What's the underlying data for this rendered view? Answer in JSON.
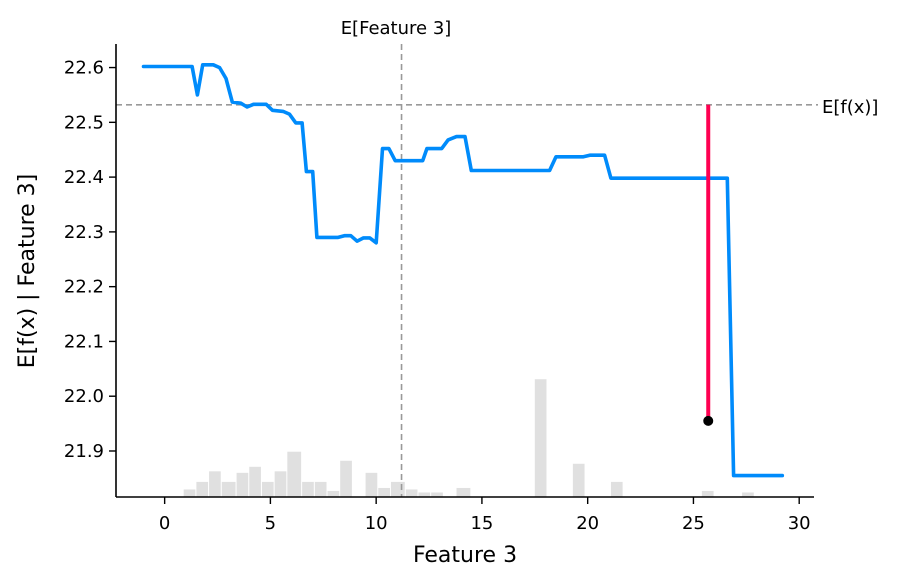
{
  "chart_data": {
    "type": "line",
    "xlabel": "Feature 3",
    "ylabel": "E[f(x) | Feature 3]",
    "xlim": [
      -2.3,
      30.7
    ],
    "ylim": [
      21.816,
      22.643
    ],
    "x_ticks": [
      0,
      5,
      10,
      15,
      20,
      25,
      30
    ],
    "y_ticks": [
      21.9,
      22.0,
      22.1,
      22.2,
      22.3,
      22.4,
      22.5,
      22.6
    ],
    "x_tick_labels": [
      "0",
      "5",
      "10",
      "15",
      "20",
      "25",
      "30"
    ],
    "y_tick_labels": [
      "21.9",
      "22.0",
      "22.1",
      "22.2",
      "22.3",
      "22.4",
      "22.5",
      "22.6"
    ],
    "reference_lines": {
      "expected_feature": {
        "label": "E[Feature 3]",
        "x": 11.2
      },
      "expected_output": {
        "label": "E[f(x)]",
        "y": 22.532
      }
    },
    "series": [
      {
        "color": "#008bfb",
        "x": [
          -1.0,
          1.3,
          1.55,
          1.8,
          2.3,
          2.6,
          2.9,
          3.2,
          3.6,
          3.9,
          4.2,
          4.8,
          5.1,
          5.6,
          5.9,
          6.2,
          6.5,
          6.7,
          7.0,
          7.2,
          7.4,
          8.2,
          8.5,
          8.8,
          9.1,
          9.4,
          9.7,
          10.0,
          10.3,
          10.6,
          10.9,
          11.2,
          12.2,
          12.4,
          13.1,
          13.4,
          13.8,
          14.2,
          14.5,
          14.8,
          18.2,
          18.5,
          18.8,
          19.8,
          20.1,
          20.8,
          21.1,
          26.6,
          26.9,
          29.2
        ],
        "y": [
          22.602,
          22.602,
          22.55,
          22.605,
          22.605,
          22.6,
          22.58,
          22.537,
          22.535,
          22.528,
          22.533,
          22.533,
          22.522,
          22.52,
          22.515,
          22.499,
          22.499,
          22.41,
          22.41,
          22.29,
          22.29,
          22.29,
          22.293,
          22.293,
          22.283,
          22.289,
          22.289,
          22.28,
          22.452,
          22.452,
          22.43,
          22.43,
          22.43,
          22.452,
          22.452,
          22.468,
          22.474,
          22.474,
          22.412,
          22.412,
          22.412,
          22.437,
          22.437,
          22.437,
          22.44,
          22.44,
          22.398,
          22.398,
          21.855,
          21.855
        ]
      }
    ],
    "instance": {
      "color": "#ff0051",
      "x": 25.7,
      "y_from": 22.532,
      "y_to": 21.955
    },
    "histogram": {
      "color": "#e0e0e0",
      "bins": [
        {
          "x0": 0.9,
          "x1": 1.5,
          "count": 0.5
        },
        {
          "x0": 1.5,
          "x1": 2.1,
          "count": 1.0
        },
        {
          "x0": 2.1,
          "x1": 2.7,
          "count": 1.7
        },
        {
          "x0": 2.7,
          "x1": 3.4,
          "count": 1.0
        },
        {
          "x0": 3.4,
          "x1": 4.0,
          "count": 1.6
        },
        {
          "x0": 4.0,
          "x1": 4.6,
          "count": 2.0
        },
        {
          "x0": 4.6,
          "x1": 5.2,
          "count": 1.0
        },
        {
          "x0": 5.2,
          "x1": 5.8,
          "count": 1.7
        },
        {
          "x0": 5.8,
          "x1": 6.5,
          "count": 3.0
        },
        {
          "x0": 6.5,
          "x1": 7.1,
          "count": 1.0
        },
        {
          "x0": 7.1,
          "x1": 7.7,
          "count": 1.0
        },
        {
          "x0": 7.7,
          "x1": 8.3,
          "count": 0.4
        },
        {
          "x0": 8.3,
          "x1": 8.9,
          "count": 2.4
        },
        {
          "x0": 9.5,
          "x1": 10.1,
          "count": 1.6
        },
        {
          "x0": 10.1,
          "x1": 10.7,
          "count": 0.6
        },
        {
          "x0": 10.7,
          "x1": 11.4,
          "count": 1.0
        },
        {
          "x0": 11.4,
          "x1": 12.0,
          "count": 0.5
        },
        {
          "x0": 12.0,
          "x1": 12.6,
          "count": 0.3
        },
        {
          "x0": 12.6,
          "x1": 13.2,
          "count": 0.3
        },
        {
          "x0": 13.8,
          "x1": 14.5,
          "count": 0.6
        },
        {
          "x0": 17.5,
          "x1": 18.1,
          "count": 7.8
        },
        {
          "x0": 19.3,
          "x1": 19.9,
          "count": 2.2
        },
        {
          "x0": 21.1,
          "x1": 21.7,
          "count": 1.0
        },
        {
          "x0": 25.4,
          "x1": 26.0,
          "count": 0.4
        },
        {
          "x0": 27.3,
          "x1": 27.9,
          "count": 0.3
        }
      ]
    }
  }
}
